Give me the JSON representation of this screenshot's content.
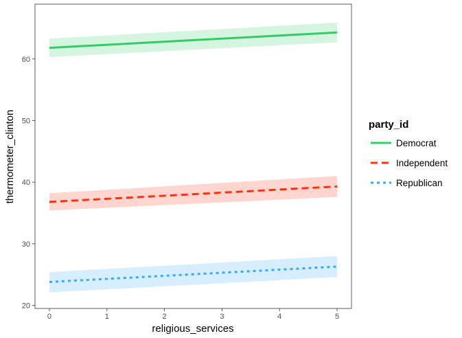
{
  "chart_data": {
    "type": "line",
    "title": "",
    "xlabel": "religious_services",
    "ylabel": "thermometer_clinton",
    "xlim": [
      -0.25,
      5.25
    ],
    "ylim": [
      19.5,
      68.9
    ],
    "x_ticks": [
      0,
      1,
      2,
      3,
      4,
      5
    ],
    "y_ticks": [
      20,
      30,
      40,
      50,
      60
    ],
    "grid": false,
    "legend": {
      "title": "party_id",
      "position": "right"
    },
    "series": [
      {
        "name": "Democrat",
        "x": [
          0,
          5
        ],
        "y": [
          61.8,
          64.3
        ],
        "ci_lower": [
          60.3,
          62.7
        ],
        "ci_upper": [
          63.3,
          65.9
        ],
        "color": "#33CC66",
        "line_style": "solid"
      },
      {
        "name": "Independent",
        "x": [
          0,
          5
        ],
        "y": [
          36.8,
          39.3
        ],
        "ci_lower": [
          35.4,
          37.6
        ],
        "ci_upper": [
          38.2,
          41.0
        ],
        "color": "#FF3311",
        "line_style": "dashed"
      },
      {
        "name": "Republican",
        "x": [
          0,
          5
        ],
        "y": [
          23.8,
          26.3
        ],
        "ci_lower": [
          22.1,
          24.6
        ],
        "ci_upper": [
          25.4,
          28.0
        ],
        "color": "#33AAFF",
        "line_style": "dotted"
      }
    ]
  }
}
